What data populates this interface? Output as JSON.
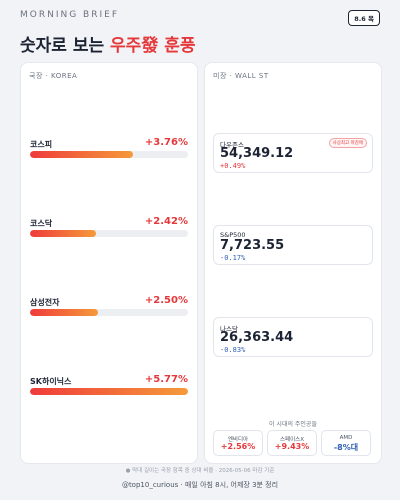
{
  "header": {
    "kicker": "MORNING BRIEF",
    "date": "8.6 목",
    "title": "숫자로 보는 ",
    "title_highlight": "우주發 훈풍"
  },
  "korea": {
    "label": "국장 · KOREA",
    "items": [
      {
        "name": "코스피",
        "value": 3.76,
        "label": "+3.76%"
      },
      {
        "name": "코스닥",
        "value": 2.42,
        "label": "+2.42%"
      },
      {
        "name": "삼성전자",
        "value": 2.5,
        "label": "+2.50%"
      },
      {
        "name": "SK하이닉스",
        "value": 5.77,
        "label": "+5.77%"
      }
    ]
  },
  "us": {
    "label": "미장 · WALL ST",
    "indices": [
      {
        "name": "다우존스",
        "price": "54,349.12",
        "change": "+0.49%",
        "badge": "사상최고 마감에"
      },
      {
        "name": "S&P500",
        "price": "7,723.55",
        "change": "-0.17%"
      },
      {
        "name": "나스닥",
        "price": "26,363.44",
        "change": "-0.83%"
      }
    ],
    "winners_label": "이 시대의 주인공들",
    "winners": [
      {
        "name": "엔비디아",
        "change": "+2.56%"
      },
      {
        "name": "스페이스X",
        "change": "+9.43%"
      },
      {
        "name": "AMD",
        "change": "-8%대"
      }
    ]
  },
  "footer": {
    "note": "● 막대 길이는 국장 항목 중 상대 비율 · 2026-05-06 마감 기준",
    "handle": "@top10_curious · 매일 아침 8시, 어제장 3분 정리"
  }
}
